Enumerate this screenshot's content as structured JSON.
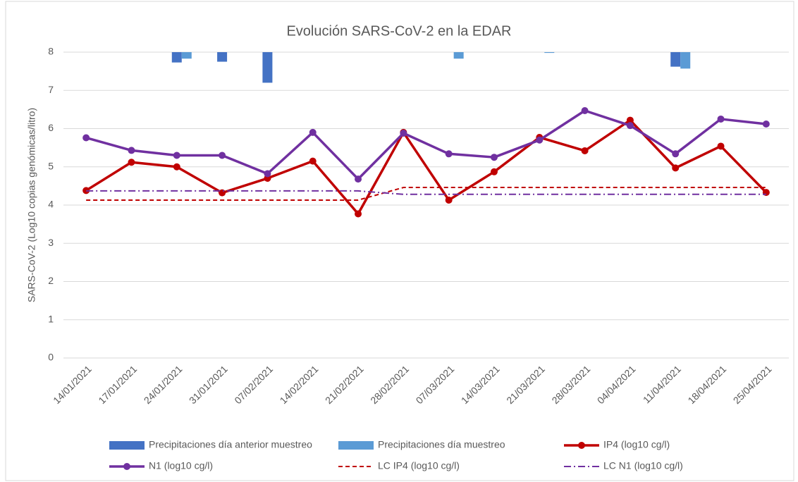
{
  "chart_data": {
    "type": "line",
    "title": "Evolución SARS-CoV-2 en la EDAR",
    "y_label": "SARS-CoV-2 (Log10 copias genómicas/litro)",
    "categories": [
      "14/01/2021",
      "17/01/2021",
      "24/01/2021",
      "31/01/2021",
      "07/02/2021",
      "14/02/2021",
      "21/02/2021",
      "28/02/2021",
      "07/03/2021",
      "14/03/2021",
      "21/03/2021",
      "28/03/2021",
      "04/04/2021",
      "11/04/2021",
      "18/04/2021",
      "25/04/2021"
    ],
    "ylim": [
      0,
      8
    ],
    "yticks": [
      0,
      1,
      2,
      3,
      4,
      5,
      6,
      7,
      8
    ],
    "y2lim": [
      8,
      0
    ],
    "grid": true,
    "series": [
      {
        "name": "Precipitaciones día anterior muestreo",
        "kind": "bar",
        "axis": "y2",
        "color": "#4472c4",
        "values": [
          null,
          null,
          0.27,
          0.25,
          0.8,
          null,
          null,
          null,
          null,
          null,
          null,
          null,
          null,
          0.38,
          null,
          null
        ]
      },
      {
        "name": "Precipitaciones día muestreo",
        "kind": "bar",
        "axis": "y2",
        "color": "#5b9bd5",
        "values": [
          null,
          null,
          0.17,
          null,
          null,
          null,
          null,
          null,
          0.17,
          null,
          0.02,
          null,
          null,
          0.43,
          null,
          null
        ]
      },
      {
        "name": "IP4 (log10 cg/l)",
        "kind": "line",
        "marker": "circle",
        "dash": "solid",
        "color": "#c00000",
        "values": [
          4.38,
          5.12,
          5.0,
          4.32,
          4.7,
          5.15,
          3.77,
          5.9,
          4.13,
          4.87,
          5.77,
          5.42,
          6.22,
          4.97,
          5.54,
          4.33
        ]
      },
      {
        "name": "N1 (log10 cg/l)",
        "kind": "line",
        "marker": "circle",
        "dash": "solid",
        "color": "#7030a0",
        "values": [
          5.76,
          5.43,
          5.3,
          5.3,
          4.82,
          5.9,
          4.68,
          5.88,
          5.34,
          5.25,
          5.7,
          6.47,
          6.08,
          5.34,
          6.25,
          6.12
        ]
      },
      {
        "name": "LC IP4 (log10 cg/l)",
        "kind": "line",
        "dash": "dashed",
        "color": "#c00000",
        "values": [
          4.13,
          4.13,
          4.13,
          4.13,
          4.13,
          4.13,
          4.13,
          4.46,
          4.46,
          4.46,
          4.46,
          4.46,
          4.46,
          4.46,
          4.46,
          4.46
        ]
      },
      {
        "name": "LC N1 (log10 cg/l)",
        "kind": "line",
        "dash": "dashdot",
        "color": "#7030a0",
        "values": [
          4.37,
          4.37,
          4.37,
          4.37,
          4.37,
          4.37,
          4.37,
          4.28,
          4.28,
          4.28,
          4.28,
          4.28,
          4.28,
          4.28,
          4.28,
          4.28
        ]
      }
    ]
  }
}
